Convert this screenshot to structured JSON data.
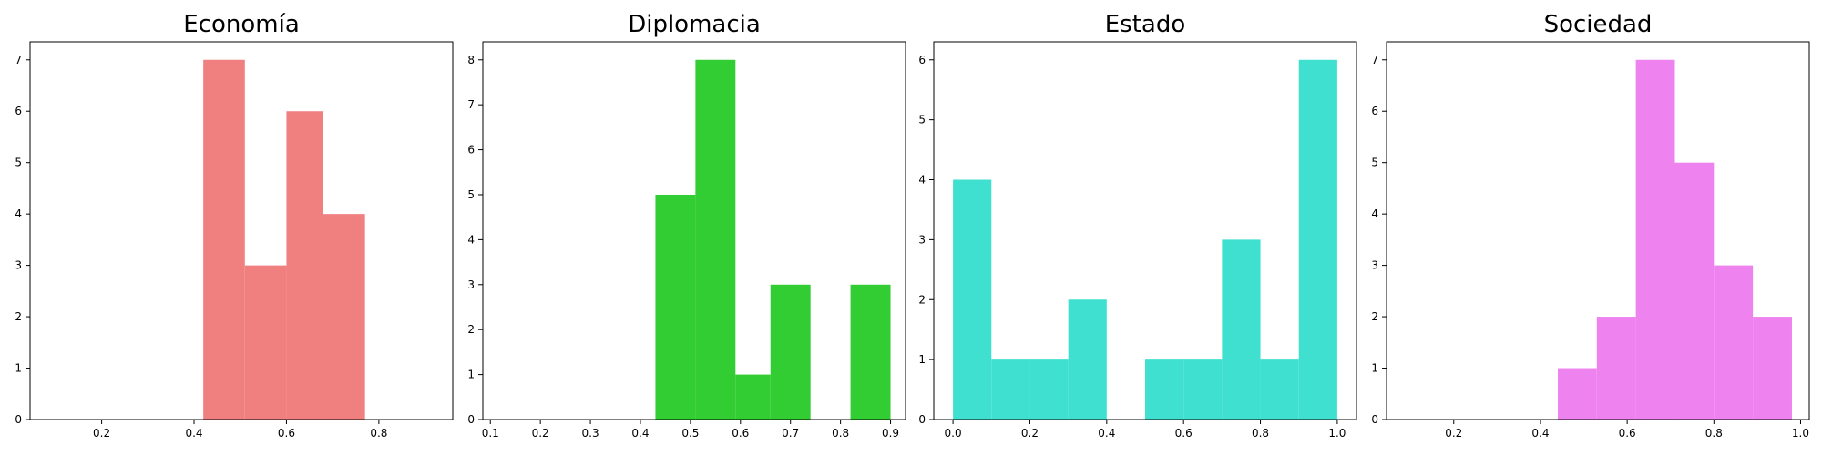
{
  "chart_data": [
    {
      "type": "histogram",
      "title": "Economía",
      "color": "#f08080",
      "xlim": [
        0.045,
        0.96
      ],
      "ylim": [
        0,
        7.35
      ],
      "xticks": [
        "0.2",
        "0.4",
        "0.6",
        "0.8"
      ],
      "yticks": [
        "0",
        "1",
        "2",
        "3",
        "4",
        "5",
        "6",
        "7"
      ],
      "bins": [
        {
          "x0": 0.42,
          "x1": 0.51,
          "count": 7
        },
        {
          "x0": 0.51,
          "x1": 0.6,
          "count": 3
        },
        {
          "x0": 0.6,
          "x1": 0.68,
          "count": 6
        },
        {
          "x0": 0.68,
          "x1": 0.77,
          "count": 4
        }
      ]
    },
    {
      "type": "histogram",
      "title": "Diplomacia",
      "color": "#32cd32",
      "xlim": [
        0.085,
        0.93
      ],
      "ylim": [
        0,
        8.4
      ],
      "xticks": [
        "0.1",
        "0.2",
        "0.3",
        "0.4",
        "0.5",
        "0.6",
        "0.7",
        "0.8",
        "0.9"
      ],
      "yticks": [
        "0",
        "1",
        "2",
        "3",
        "4",
        "5",
        "6",
        "7",
        "8"
      ],
      "bins": [
        {
          "x0": 0.43,
          "x1": 0.51,
          "count": 5
        },
        {
          "x0": 0.51,
          "x1": 0.59,
          "count": 8
        },
        {
          "x0": 0.59,
          "x1": 0.66,
          "count": 1
        },
        {
          "x0": 0.66,
          "x1": 0.74,
          "count": 3
        },
        {
          "x0": 0.74,
          "x1": 0.82,
          "count": 0
        },
        {
          "x0": 0.82,
          "x1": 0.9,
          "count": 3
        }
      ]
    },
    {
      "type": "histogram",
      "title": "Estado",
      "color": "#40e0d0",
      "xlim": [
        -0.05,
        1.05
      ],
      "ylim": [
        0,
        6.3
      ],
      "xticks": [
        "0.0",
        "0.2",
        "0.4",
        "0.6",
        "0.8",
        "1.0"
      ],
      "yticks": [
        "0",
        "1",
        "2",
        "3",
        "4",
        "5",
        "6"
      ],
      "bins": [
        {
          "x0": 0.0,
          "x1": 0.1,
          "count": 4
        },
        {
          "x0": 0.1,
          "x1": 0.2,
          "count": 1
        },
        {
          "x0": 0.2,
          "x1": 0.3,
          "count": 1
        },
        {
          "x0": 0.3,
          "x1": 0.4,
          "count": 2
        },
        {
          "x0": 0.4,
          "x1": 0.5,
          "count": 0
        },
        {
          "x0": 0.5,
          "x1": 0.6,
          "count": 1
        },
        {
          "x0": 0.6,
          "x1": 0.7,
          "count": 1
        },
        {
          "x0": 0.7,
          "x1": 0.8,
          "count": 3
        },
        {
          "x0": 0.8,
          "x1": 0.9,
          "count": 1
        },
        {
          "x0": 0.9,
          "x1": 1.0,
          "count": 6
        }
      ]
    },
    {
      "type": "histogram",
      "title": "Sociedad",
      "color": "#ee82ee",
      "xlim": [
        0.045,
        1.02
      ],
      "ylim": [
        0,
        7.35
      ],
      "xticks": [
        "0.2",
        "0.4",
        "0.6",
        "0.8",
        "1.0"
      ],
      "yticks": [
        "0",
        "1",
        "2",
        "3",
        "4",
        "5",
        "6",
        "7"
      ],
      "bins": [
        {
          "x0": 0.44,
          "x1": 0.53,
          "count": 1
        },
        {
          "x0": 0.53,
          "x1": 0.62,
          "count": 2
        },
        {
          "x0": 0.62,
          "x1": 0.71,
          "count": 7
        },
        {
          "x0": 0.71,
          "x1": 0.8,
          "count": 5
        },
        {
          "x0": 0.8,
          "x1": 0.89,
          "count": 3
        },
        {
          "x0": 0.89,
          "x1": 0.98,
          "count": 2
        }
      ]
    }
  ]
}
